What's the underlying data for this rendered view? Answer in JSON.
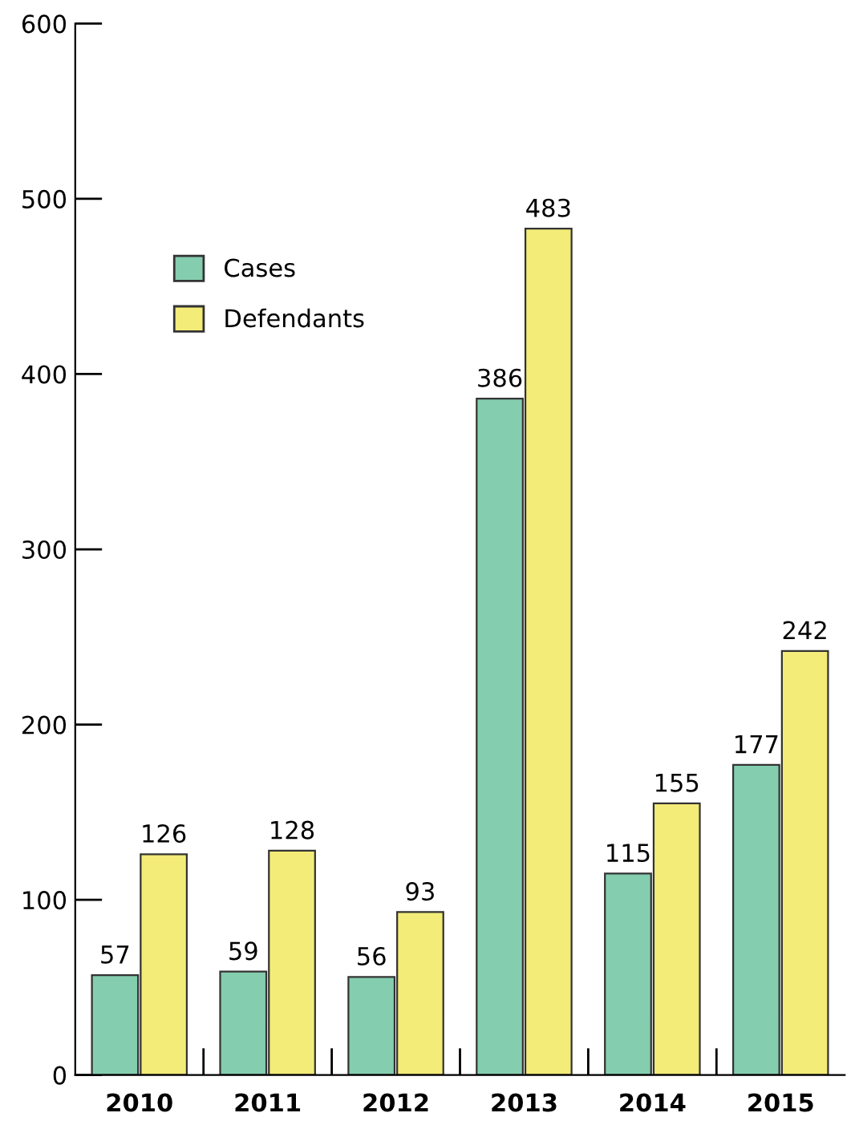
{
  "chart_data": {
    "type": "bar",
    "categories": [
      "2010",
      "2011",
      "2012",
      "2013",
      "2014",
      "2015"
    ],
    "series": [
      {
        "name": "Cases",
        "color": "#85cdaf",
        "values": [
          57,
          59,
          56,
          386,
          115,
          177
        ]
      },
      {
        "name": "Defendants",
        "color": "#f3ec78",
        "values": [
          126,
          128,
          93,
          483,
          155,
          242
        ]
      }
    ],
    "ylim": [
      0,
      600
    ],
    "yticks": [
      0,
      100,
      200,
      300,
      400,
      500,
      600
    ],
    "grid": false,
    "legend": "top left",
    "data_labels": true
  }
}
